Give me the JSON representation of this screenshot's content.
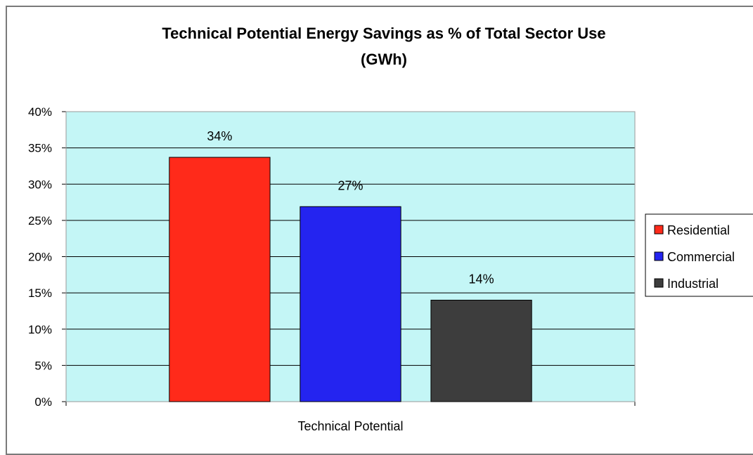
{
  "chart_data": {
    "type": "bar",
    "title_lines": [
      "Technical Potential Energy Savings as % of Total Sector Use",
      "(GWh)"
    ],
    "categories": [
      "Technical Potential"
    ],
    "series": [
      {
        "name": "Residential",
        "values": [
          33.7
        ],
        "label": "34%",
        "color": "#ff2a1a"
      },
      {
        "name": "Commercial",
        "values": [
          26.9
        ],
        "label": "27%",
        "color": "#2424f0"
      },
      {
        "name": "Industrial",
        "values": [
          14.0
        ],
        "label": "14%",
        "color": "#3d3d3d"
      }
    ],
    "ylim": [
      0,
      40
    ],
    "y_ticks": [
      0,
      5,
      10,
      15,
      20,
      25,
      30,
      35,
      40
    ],
    "y_tick_labels": [
      "0%",
      "5%",
      "10%",
      "15%",
      "20%",
      "25%",
      "30%",
      "35%",
      "40%"
    ],
    "grid": true,
    "plot_background": "#c4f6f6",
    "legend_position": "right"
  }
}
